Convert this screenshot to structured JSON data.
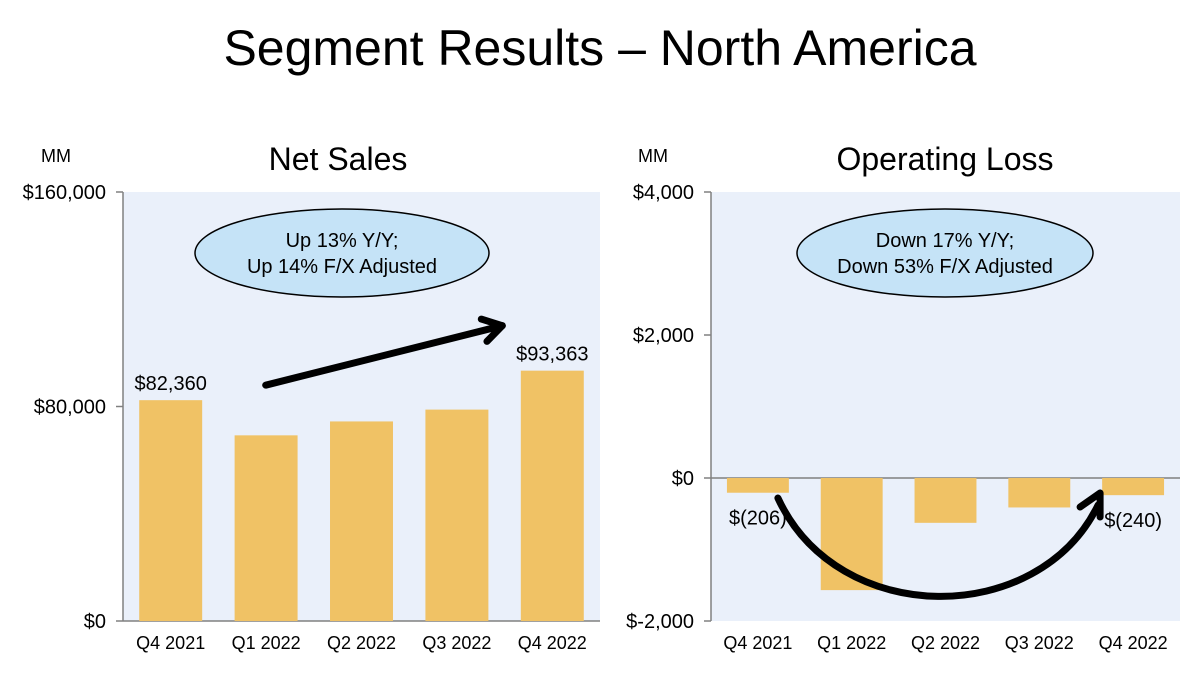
{
  "page": {
    "title": "Segment Results – North America"
  },
  "chart_data": [
    {
      "type": "bar",
      "title": "Net Sales",
      "unit_label": "MM",
      "categories": [
        "Q4 2021",
        "Q1 2022",
        "Q2 2022",
        "Q3 2022",
        "Q4 2022"
      ],
      "values": [
        82360,
        69244,
        74430,
        78843,
        93363
      ],
      "ylim": [
        0,
        160000
      ],
      "yticks": [
        0,
        80000,
        160000
      ],
      "ytick_labels": [
        "$0",
        "$80,000",
        "$160,000"
      ],
      "data_labels": [
        "$82,360",
        "",
        "",
        "",
        "$93,363"
      ],
      "callout": [
        "Up 13% Y/Y;",
        "Up 14% F/X Adjusted"
      ],
      "bar_color": "#F0C265",
      "plot_bg": "#EAF0FA",
      "callout_fill": "#C5E3F7"
    },
    {
      "type": "bar",
      "title": "Operating Loss",
      "unit_label": "MM",
      "categories": [
        "Q4 2021",
        "Q1 2022",
        "Q2 2022",
        "Q3 2022",
        "Q4 2022"
      ],
      "values": [
        -206,
        -1568,
        -627,
        -412,
        -240
      ],
      "ylim": [
        -2000,
        4000
      ],
      "yticks": [
        -2000,
        0,
        2000,
        4000
      ],
      "ytick_labels": [
        "$-2,000",
        "$0",
        "$2,000",
        "$4,000"
      ],
      "data_labels": [
        "$(206)",
        "",
        "",
        "",
        "$(240)"
      ],
      "callout": [
        "Down 17% Y/Y;",
        "Down 53% F/X Adjusted"
      ],
      "bar_color": "#F0C265",
      "plot_bg": "#EAF0FA",
      "callout_fill": "#C5E3F7"
    }
  ]
}
